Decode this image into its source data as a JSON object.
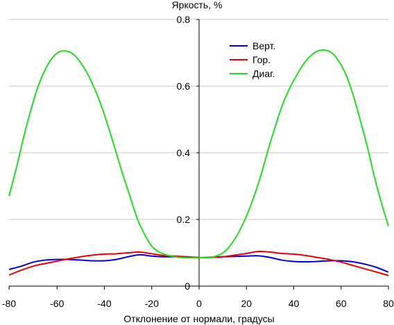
{
  "chart_data": {
    "type": "line",
    "title": "",
    "ylabel": "Яркость, %",
    "xlabel": "Отклонение от нормали, градусы",
    "xlim": [
      -80,
      80
    ],
    "ylim": [
      0,
      0.8
    ],
    "xticks": [
      -80,
      -60,
      -40,
      -20,
      0,
      20,
      40,
      60,
      80
    ],
    "xtick_labels": [
      "-80",
      "-60",
      "-40",
      "-20",
      "0",
      "20",
      "40",
      "60",
      "80"
    ],
    "yticks": [
      0,
      0.2,
      0.4,
      0.6,
      0.8
    ],
    "ytick_labels": [
      "0",
      "0.2",
      "0.4",
      "0.6",
      "0.8"
    ],
    "grid": "horizontal",
    "legend_position": "top-right",
    "series": [
      {
        "name": "Верт.",
        "color": "#0000dd",
        "x": [
          -80,
          -75,
          -70,
          -65,
          -60,
          -55,
          -50,
          -45,
          -40,
          -35,
          -30,
          -25,
          -20,
          -15,
          -10,
          -5,
          0,
          5,
          10,
          15,
          20,
          25,
          30,
          35,
          40,
          45,
          50,
          55,
          60,
          65,
          70,
          75,
          80
        ],
        "y": [
          0.05,
          0.06,
          0.072,
          0.078,
          0.08,
          0.08,
          0.078,
          0.076,
          0.076,
          0.08,
          0.088,
          0.094,
          0.09,
          0.088,
          0.088,
          0.087,
          0.085,
          0.087,
          0.088,
          0.089,
          0.09,
          0.091,
          0.086,
          0.078,
          0.074,
          0.073,
          0.074,
          0.076,
          0.076,
          0.073,
          0.066,
          0.056,
          0.042
        ]
      },
      {
        "name": "Гор.",
        "color": "#ee0000",
        "x": [
          -80,
          -75,
          -70,
          -65,
          -60,
          -55,
          -50,
          -45,
          -40,
          -35,
          -30,
          -25,
          -20,
          -15,
          -10,
          -5,
          0,
          5,
          10,
          15,
          20,
          25,
          30,
          35,
          40,
          45,
          50,
          55,
          60,
          65,
          70,
          75,
          80
        ],
        "y": [
          0.033,
          0.048,
          0.06,
          0.068,
          0.075,
          0.082,
          0.088,
          0.093,
          0.096,
          0.097,
          0.1,
          0.102,
          0.097,
          0.092,
          0.09,
          0.088,
          0.086,
          0.086,
          0.088,
          0.093,
          0.098,
          0.104,
          0.102,
          0.098,
          0.096,
          0.092,
          0.086,
          0.08,
          0.072,
          0.062,
          0.052,
          0.042,
          0.032
        ]
      },
      {
        "name": "Диаг.",
        "color": "#22dd22",
        "x": [
          -80,
          -77,
          -74,
          -71,
          -68,
          -65,
          -62,
          -59,
          -56,
          -53,
          -50,
          -47,
          -44,
          -41,
          -38,
          -35,
          -32,
          -29,
          -26,
          -23,
          -20,
          -17,
          -14,
          -11,
          -8,
          -5,
          -2,
          0,
          2,
          5,
          8,
          11,
          14,
          17,
          20,
          23,
          26,
          29,
          32,
          35,
          38,
          41,
          44,
          47,
          50,
          53,
          56,
          59,
          62,
          65,
          68,
          71,
          74,
          77,
          80
        ],
        "y": [
          0.27,
          0.36,
          0.45,
          0.53,
          0.6,
          0.65,
          0.685,
          0.703,
          0.705,
          0.695,
          0.67,
          0.635,
          0.59,
          0.535,
          0.47,
          0.4,
          0.33,
          0.265,
          0.2,
          0.155,
          0.12,
          0.103,
          0.094,
          0.089,
          0.086,
          0.085,
          0.085,
          0.085,
          0.086,
          0.087,
          0.092,
          0.105,
          0.13,
          0.165,
          0.21,
          0.265,
          0.33,
          0.405,
          0.475,
          0.54,
          0.59,
          0.63,
          0.665,
          0.69,
          0.705,
          0.708,
          0.7,
          0.675,
          0.635,
          0.575,
          0.5,
          0.42,
          0.33,
          0.25,
          0.18
        ]
      }
    ]
  }
}
